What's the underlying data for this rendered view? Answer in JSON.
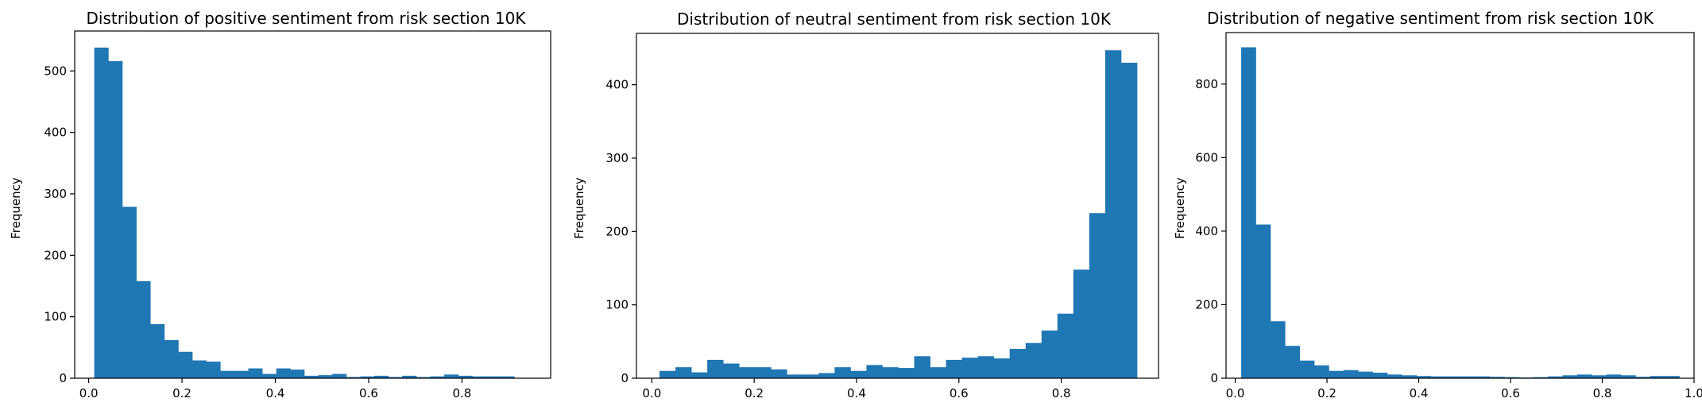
{
  "bar_color": "#1f77b4",
  "chart_data": [
    {
      "type": "bar",
      "title": "Distribution of positive sentiment from  risk section 10K",
      "xlabel": "",
      "ylabel": "Frequency",
      "xlim": [
        -0.03,
        0.99
      ],
      "ylim": [
        0,
        565
      ],
      "xticks": [
        0.0,
        0.2,
        0.4,
        0.6,
        0.8
      ],
      "xtick_labels": [
        "0.0",
        "0.2",
        "0.4",
        "0.6",
        "0.8"
      ],
      "yticks": [
        0,
        100,
        200,
        300,
        400,
        500
      ],
      "ytick_labels": [
        "0",
        "100",
        "200",
        "300",
        "400",
        "500"
      ],
      "bin_range": [
        0.012,
        0.912
      ],
      "values": [
        538,
        516,
        279,
        158,
        88,
        62,
        43,
        29,
        27,
        12,
        12,
        16,
        7,
        16,
        14,
        4,
        5,
        7,
        2,
        3,
        4,
        2,
        4,
        2,
        3,
        6,
        4,
        3,
        3,
        3
      ],
      "grid": false,
      "legend": "none"
    },
    {
      "type": "bar",
      "title": "Distribution of neutral sentiment from  risk section 10K",
      "xlabel": "",
      "ylabel": "Frequency",
      "xlim": [
        -0.03,
        0.99
      ],
      "ylim": [
        0,
        470
      ],
      "xticks": [
        0.0,
        0.2,
        0.4,
        0.6,
        0.8
      ],
      "xtick_labels": [
        "0.0",
        "0.2",
        "0.4",
        "0.6",
        "0.8"
      ],
      "yticks": [
        0,
        100,
        200,
        300,
        400
      ],
      "ytick_labels": [
        "0",
        "100",
        "200",
        "300",
        "400"
      ],
      "bin_range": [
        0.015,
        0.948
      ],
      "values": [
        10,
        15,
        8,
        25,
        20,
        15,
        15,
        12,
        5,
        5,
        7,
        15,
        10,
        18,
        15,
        14,
        30,
        15,
        25,
        28,
        30,
        27,
        40,
        48,
        65,
        88,
        148,
        225,
        447,
        430
      ],
      "grid": false,
      "legend": "none"
    },
    {
      "type": "bar",
      "title": "Distribution of negative sentiment from risk section 10K",
      "xlabel": "",
      "ylabel": "Frequency",
      "xlim": [
        -0.02,
        1.0
      ],
      "ylim": [
        0,
        940
      ],
      "xticks": [
        0.0,
        0.2,
        0.4,
        0.6,
        0.8,
        1.0
      ],
      "xtick_labels": [
        "0.0",
        "0.2",
        "0.4",
        "0.6",
        "0.8",
        "1.0"
      ],
      "yticks": [
        0,
        200,
        400,
        600,
        800
      ],
      "ytick_labels": [
        "0",
        "200",
        "400",
        "600",
        "800"
      ],
      "bin_range": [
        0.013,
        0.968
      ],
      "values": [
        900,
        418,
        155,
        88,
        48,
        35,
        20,
        22,
        18,
        15,
        10,
        8,
        6,
        5,
        5,
        5,
        5,
        4,
        3,
        2,
        3,
        5,
        8,
        10,
        8,
        10,
        8,
        4,
        6,
        6
      ],
      "grid": false,
      "legend": "none"
    }
  ]
}
